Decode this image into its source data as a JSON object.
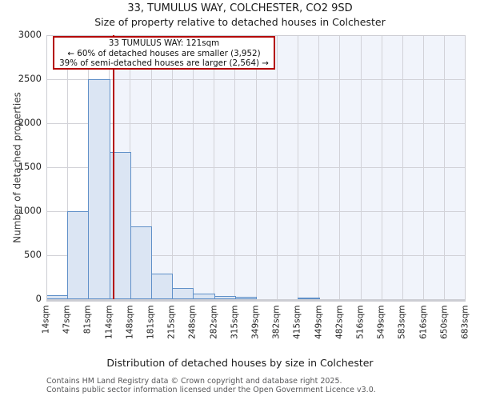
{
  "colors": {
    "bar_fill": "#dbe5f3",
    "bar_border": "#6090c8",
    "marker_red": "#b40000",
    "annotation_border": "#b40000",
    "shade": "#f1f4fb",
    "gridline": "#d2d2d8",
    "spine": "#cccdd3",
    "text_gray": "#58585a"
  },
  "footer": {
    "line1": "Contains HM Land Registry data © Crown copyright and database right 2025.",
    "line2": "Contains public sector information licensed under the Open Government Licence v3.0."
  },
  "chart_data": {
    "type": "bar",
    "title": "33, TUMULUS WAY, COLCHESTER, CO2 9SD",
    "subtitle": "Size of property relative to detached houses in Colchester",
    "xlabel": "Distribution of detached houses by size in Colchester",
    "ylabel": "Number of detached properties",
    "ylim": [
      0,
      3000
    ],
    "yticks": [
      0,
      500,
      1000,
      1500,
      2000,
      2500,
      3000
    ],
    "grid": true,
    "legend": "none",
    "x_range": [
      14,
      683
    ],
    "categories": [
      "14sqm",
      "47sqm",
      "81sqm",
      "114sqm",
      "148sqm",
      "181sqm",
      "215sqm",
      "248sqm",
      "282sqm",
      "315sqm",
      "349sqm",
      "382sqm",
      "415sqm",
      "449sqm",
      "482sqm",
      "516sqm",
      "549sqm",
      "583sqm",
      "616sqm",
      "650sqm",
      "683sqm"
    ],
    "values": [
      45,
      1000,
      2500,
      1670,
      830,
      290,
      125,
      60,
      35,
      25,
      0,
      0,
      14,
      0,
      0,
      0,
      0,
      0,
      0,
      0
    ],
    "marker": {
      "label": "33 TUMULUS WAY",
      "value": 121,
      "shaded_region": "right of marker"
    },
    "annotation": {
      "lines": [
        "33 TUMULUS WAY: 121sqm",
        "← 60% of detached houses are smaller (3,952)",
        "39% of semi-detached houses are larger (2,564) →"
      ]
    }
  }
}
